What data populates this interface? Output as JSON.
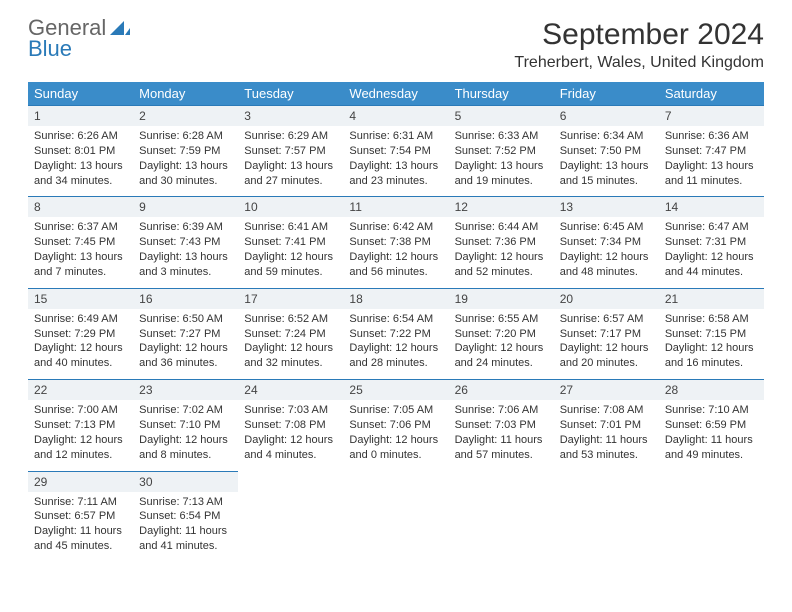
{
  "logo": {
    "text1": "General",
    "text2": "Blue"
  },
  "title": "September 2024",
  "location": "Treherbert, Wales, United Kingdom",
  "colors": {
    "header_bg": "#3a8cc9",
    "header_text": "#ffffff",
    "daynum_bg": "#eef2f5",
    "border": "#2a7ab8",
    "body_text": "#333333",
    "logo_gray": "#666666",
    "logo_blue": "#2a7ab8"
  },
  "typography": {
    "title_fontsize": 30,
    "location_fontsize": 16,
    "header_fontsize": 13,
    "daynum_fontsize": 12,
    "detail_fontsize": 11
  },
  "day_names": [
    "Sunday",
    "Monday",
    "Tuesday",
    "Wednesday",
    "Thursday",
    "Friday",
    "Saturday"
  ],
  "weeks": [
    [
      {
        "n": "1",
        "sr": "Sunrise: 6:26 AM",
        "ss": "Sunset: 8:01 PM",
        "dl": "Daylight: 13 hours and 34 minutes."
      },
      {
        "n": "2",
        "sr": "Sunrise: 6:28 AM",
        "ss": "Sunset: 7:59 PM",
        "dl": "Daylight: 13 hours and 30 minutes."
      },
      {
        "n": "3",
        "sr": "Sunrise: 6:29 AM",
        "ss": "Sunset: 7:57 PM",
        "dl": "Daylight: 13 hours and 27 minutes."
      },
      {
        "n": "4",
        "sr": "Sunrise: 6:31 AM",
        "ss": "Sunset: 7:54 PM",
        "dl": "Daylight: 13 hours and 23 minutes."
      },
      {
        "n": "5",
        "sr": "Sunrise: 6:33 AM",
        "ss": "Sunset: 7:52 PM",
        "dl": "Daylight: 13 hours and 19 minutes."
      },
      {
        "n": "6",
        "sr": "Sunrise: 6:34 AM",
        "ss": "Sunset: 7:50 PM",
        "dl": "Daylight: 13 hours and 15 minutes."
      },
      {
        "n": "7",
        "sr": "Sunrise: 6:36 AM",
        "ss": "Sunset: 7:47 PM",
        "dl": "Daylight: 13 hours and 11 minutes."
      }
    ],
    [
      {
        "n": "8",
        "sr": "Sunrise: 6:37 AM",
        "ss": "Sunset: 7:45 PM",
        "dl": "Daylight: 13 hours and 7 minutes."
      },
      {
        "n": "9",
        "sr": "Sunrise: 6:39 AM",
        "ss": "Sunset: 7:43 PM",
        "dl": "Daylight: 13 hours and 3 minutes."
      },
      {
        "n": "10",
        "sr": "Sunrise: 6:41 AM",
        "ss": "Sunset: 7:41 PM",
        "dl": "Daylight: 12 hours and 59 minutes."
      },
      {
        "n": "11",
        "sr": "Sunrise: 6:42 AM",
        "ss": "Sunset: 7:38 PM",
        "dl": "Daylight: 12 hours and 56 minutes."
      },
      {
        "n": "12",
        "sr": "Sunrise: 6:44 AM",
        "ss": "Sunset: 7:36 PM",
        "dl": "Daylight: 12 hours and 52 minutes."
      },
      {
        "n": "13",
        "sr": "Sunrise: 6:45 AM",
        "ss": "Sunset: 7:34 PM",
        "dl": "Daylight: 12 hours and 48 minutes."
      },
      {
        "n": "14",
        "sr": "Sunrise: 6:47 AM",
        "ss": "Sunset: 7:31 PM",
        "dl": "Daylight: 12 hours and 44 minutes."
      }
    ],
    [
      {
        "n": "15",
        "sr": "Sunrise: 6:49 AM",
        "ss": "Sunset: 7:29 PM",
        "dl": "Daylight: 12 hours and 40 minutes."
      },
      {
        "n": "16",
        "sr": "Sunrise: 6:50 AM",
        "ss": "Sunset: 7:27 PM",
        "dl": "Daylight: 12 hours and 36 minutes."
      },
      {
        "n": "17",
        "sr": "Sunrise: 6:52 AM",
        "ss": "Sunset: 7:24 PM",
        "dl": "Daylight: 12 hours and 32 minutes."
      },
      {
        "n": "18",
        "sr": "Sunrise: 6:54 AM",
        "ss": "Sunset: 7:22 PM",
        "dl": "Daylight: 12 hours and 28 minutes."
      },
      {
        "n": "19",
        "sr": "Sunrise: 6:55 AM",
        "ss": "Sunset: 7:20 PM",
        "dl": "Daylight: 12 hours and 24 minutes."
      },
      {
        "n": "20",
        "sr": "Sunrise: 6:57 AM",
        "ss": "Sunset: 7:17 PM",
        "dl": "Daylight: 12 hours and 20 minutes."
      },
      {
        "n": "21",
        "sr": "Sunrise: 6:58 AM",
        "ss": "Sunset: 7:15 PM",
        "dl": "Daylight: 12 hours and 16 minutes."
      }
    ],
    [
      {
        "n": "22",
        "sr": "Sunrise: 7:00 AM",
        "ss": "Sunset: 7:13 PM",
        "dl": "Daylight: 12 hours and 12 minutes."
      },
      {
        "n": "23",
        "sr": "Sunrise: 7:02 AM",
        "ss": "Sunset: 7:10 PM",
        "dl": "Daylight: 12 hours and 8 minutes."
      },
      {
        "n": "24",
        "sr": "Sunrise: 7:03 AM",
        "ss": "Sunset: 7:08 PM",
        "dl": "Daylight: 12 hours and 4 minutes."
      },
      {
        "n": "25",
        "sr": "Sunrise: 7:05 AM",
        "ss": "Sunset: 7:06 PM",
        "dl": "Daylight: 12 hours and 0 minutes."
      },
      {
        "n": "26",
        "sr": "Sunrise: 7:06 AM",
        "ss": "Sunset: 7:03 PM",
        "dl": "Daylight: 11 hours and 57 minutes."
      },
      {
        "n": "27",
        "sr": "Sunrise: 7:08 AM",
        "ss": "Sunset: 7:01 PM",
        "dl": "Daylight: 11 hours and 53 minutes."
      },
      {
        "n": "28",
        "sr": "Sunrise: 7:10 AM",
        "ss": "Sunset: 6:59 PM",
        "dl": "Daylight: 11 hours and 49 minutes."
      }
    ],
    [
      {
        "n": "29",
        "sr": "Sunrise: 7:11 AM",
        "ss": "Sunset: 6:57 PM",
        "dl": "Daylight: 11 hours and 45 minutes."
      },
      {
        "n": "30",
        "sr": "Sunrise: 7:13 AM",
        "ss": "Sunset: 6:54 PM",
        "dl": "Daylight: 11 hours and 41 minutes."
      },
      null,
      null,
      null,
      null,
      null
    ]
  ]
}
